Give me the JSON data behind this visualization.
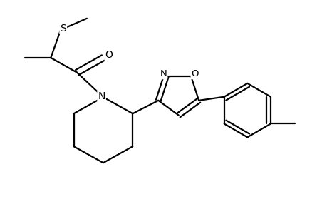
{
  "background_color": "#ffffff",
  "line_color": "#000000",
  "line_width": 1.6,
  "fig_width": 4.6,
  "fig_height": 3.0,
  "dpi": 100,
  "xlim": [
    0,
    10
  ],
  "ylim": [
    0,
    6.5
  ]
}
